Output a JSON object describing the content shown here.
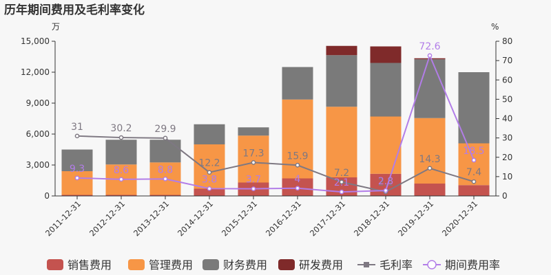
{
  "chart_data": {
    "type": "bar",
    "title": "历年期间费用及毛利率变化",
    "y_left_unit": "万",
    "y_right_unit": "%",
    "ylim_left": [
      0,
      15000
    ],
    "ylim_right": [
      0,
      80
    ],
    "yticks_left": [
      "0",
      "3,000",
      "6,000",
      "9,000",
      "12,000",
      "15,000"
    ],
    "yticks_right": [
      "0",
      "10",
      "20",
      "30",
      "40",
      "50",
      "60",
      "70",
      "80"
    ],
    "categories": [
      "2011-12-31",
      "2012-12-31",
      "2013-12-31",
      "2014-12-31",
      "2015-12-31",
      "2016-12-31",
      "2017-12-31",
      "2018-12-31",
      "2019-12-31",
      "2020-12-31"
    ],
    "series": [
      {
        "name": "销售费用",
        "type": "bar",
        "stack": "cost",
        "color": "#c4534f",
        "values": [
          100,
          100,
          100,
          700,
          1300,
          1700,
          1800,
          2150,
          1200,
          1050
        ]
      },
      {
        "name": "管理费用",
        "type": "bar",
        "stack": "cost",
        "color": "#f79646",
        "values": [
          2300,
          2950,
          3150,
          4300,
          4550,
          7650,
          6850,
          5550,
          6350,
          4050
        ]
      },
      {
        "name": "财务费用",
        "type": "bar",
        "stack": "cost",
        "color": "#7a7a7a",
        "values": [
          2100,
          2400,
          2200,
          1950,
          800,
          3150,
          5000,
          5200,
          5700,
          6900
        ]
      },
      {
        "name": "研发费用",
        "type": "bar",
        "stack": "cost",
        "color": "#7f2a2a",
        "values": [
          0,
          0,
          0,
          0,
          0,
          0,
          900,
          1600,
          100,
          0
        ]
      },
      {
        "name": "毛利率",
        "type": "line",
        "axis": "right",
        "color": "#7e7882",
        "values": [
          31,
          30.2,
          29.9,
          12.2,
          17.3,
          15.9,
          7.2,
          2.1,
          14.3,
          7.4
        ]
      },
      {
        "name": "期间费用率",
        "type": "line",
        "axis": "right",
        "color": "#b27de8",
        "values": [
          9.3,
          8.6,
          8.8,
          3.8,
          3.7,
          4,
          2.1,
          2.8,
          72.6,
          18.5
        ]
      }
    ],
    "data_labels": {
      "毛利率": [
        "31",
        "30.2",
        "29.9",
        "12.2",
        "17.3",
        "15.9",
        "7.2",
        "2.1",
        "14.3",
        "7.4"
      ],
      "期间费用率": [
        "9.3",
        "8.6",
        "8.8",
        "3.8",
        "3.7",
        "4",
        "2.1",
        "2.8",
        "72.6",
        "18.5"
      ]
    },
    "legend_position": "bottom",
    "grid": false
  }
}
